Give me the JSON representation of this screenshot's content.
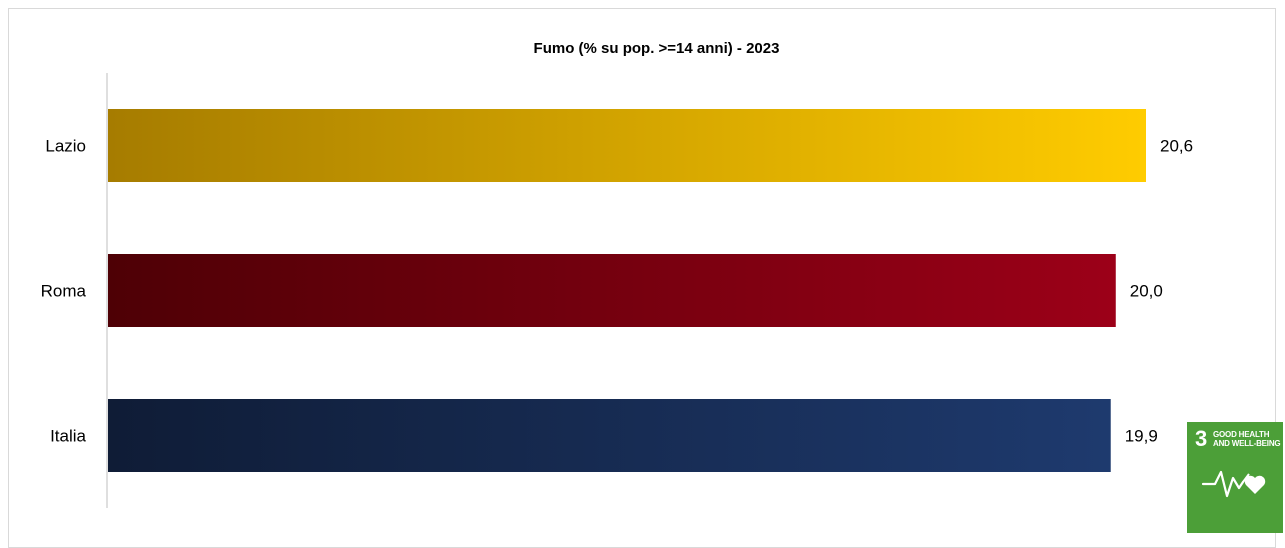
{
  "chart_data": {
    "type": "bar",
    "orientation": "horizontal",
    "title": "Fumo (% su pop. >=14 anni) - 2023",
    "categories": [
      "Lazio",
      "Roma",
      "Italia"
    ],
    "values": [
      20.6,
      20.0,
      19.9
    ],
    "value_labels": [
      "20,6",
      "20,0",
      "19,9"
    ],
    "colors": [
      [
        "#a67c00",
        "#ffcc00"
      ],
      [
        "#4e0005",
        "#9c0018"
      ],
      [
        "#0f1c36",
        "#1e3a6e"
      ]
    ],
    "xlim": [
      0,
      20.6
    ],
    "grid": false,
    "legend": "none"
  },
  "badge": {
    "number": "3",
    "text": "GOOD HEALTH AND WELL-BEING",
    "icon": "heartbeat-heart-icon",
    "color": "#4c9f38"
  }
}
